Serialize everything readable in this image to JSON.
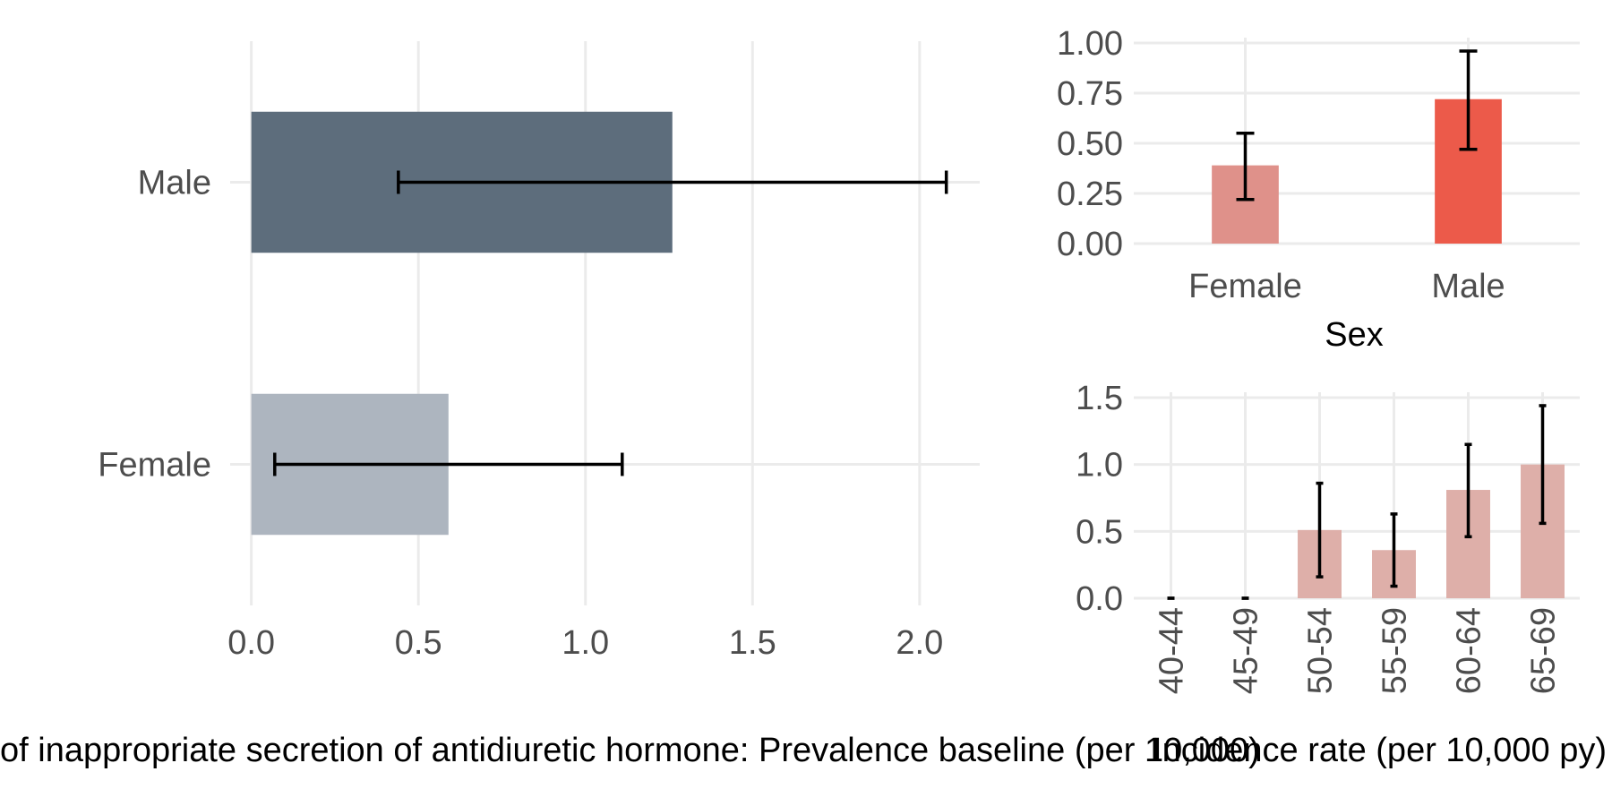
{
  "chart_data": [
    {
      "type": "bar",
      "orientation": "horizontal",
      "categories": [
        "Female",
        "Male"
      ],
      "values": [
        0.59,
        1.26
      ],
      "error_low": [
        0.07,
        0.44
      ],
      "error_high": [
        1.11,
        2.08
      ],
      "colors": [
        "#adb5bf",
        "#5d6d7c"
      ],
      "xlim": [
        -0.05,
        2.18
      ],
      "x_ticks": [
        "0.0",
        "0.5",
        "1.0",
        "1.5",
        "2.0"
      ],
      "xlabel": "of inappropriate secretion of antidiuretic hormone: Prevalence baseline (per 10,000)",
      "ylabel": "",
      "grid": true,
      "legend": "none"
    },
    {
      "type": "bar",
      "categories": [
        "Female",
        "Male"
      ],
      "values": [
        0.39,
        0.72
      ],
      "error_low": [
        0.22,
        0.47
      ],
      "error_high": [
        0.55,
        0.96
      ],
      "colors": [
        "#df918a",
        "#ec5a4a"
      ],
      "ylim": [
        0,
        1.0
      ],
      "y_ticks": [
        "0.00",
        "0.25",
        "0.50",
        "0.75",
        "1.00"
      ],
      "xlabel": "Sex",
      "ylabel": "",
      "grid": true,
      "legend": "none"
    },
    {
      "type": "bar",
      "categories": [
        "40-44",
        "45-49",
        "50-54",
        "55-59",
        "60-64",
        "65-69"
      ],
      "values": [
        0,
        0,
        0.51,
        0.36,
        0.81,
        1.0
      ],
      "error_low": [
        0,
        0,
        0.16,
        0.09,
        0.46,
        0.56
      ],
      "error_high": [
        0,
        0,
        0.86,
        0.63,
        1.15,
        1.44
      ],
      "colors": [
        "#deafa9"
      ],
      "ylim": [
        0,
        1.5
      ],
      "y_ticks": [
        "0.0",
        "0.5",
        "1.0",
        "1.5"
      ],
      "xlabel": "Incidence rate (per 10,000 py)",
      "ylabel": "",
      "grid": true,
      "legend": "none"
    }
  ]
}
